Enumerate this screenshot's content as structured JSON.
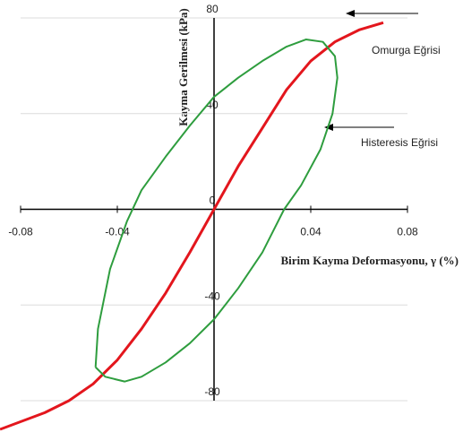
{
  "chart_data": {
    "type": "line",
    "x_label": "Birim Kayma Deformasyonu, γ (%)",
    "y_label": "Kayma Gerilmesi (kPa)",
    "xlim": [
      -0.08,
      0.08
    ],
    "ylim": [
      -80,
      80
    ],
    "xticks": [
      -0.08,
      -0.04,
      0.04,
      0.08
    ],
    "yticks": [
      -80,
      -40,
      0,
      40,
      80
    ],
    "grid": true,
    "series": [
      {
        "name": "Omurga Eğrisi",
        "color": "#e3161d",
        "x": [
          -0.0885,
          -0.07,
          -0.06,
          -0.05,
          -0.04,
          -0.03,
          -0.02,
          -0.01,
          0,
          0.01,
          0.02,
          0.03,
          0.04,
          0.05,
          0.06,
          0.07
        ],
        "y": [
          -92,
          -85,
          -80,
          -73,
          -63,
          -50,
          -35,
          -18,
          0,
          18,
          34,
          50,
          62,
          70,
          75,
          78
        ]
      },
      {
        "name": "Histeresis Eğrisi",
        "color": "#2e9d3e",
        "x": [
          -0.049,
          -0.048,
          -0.043,
          -0.036,
          -0.03,
          -0.02,
          -0.01,
          0,
          0.01,
          0.02,
          0.03,
          0.038,
          0.045,
          0.05,
          0.051,
          0.049,
          0.044,
          0.036,
          0.029,
          0.02,
          0.01,
          0,
          -0.01,
          -0.02,
          -0.03,
          -0.037,
          -0.045,
          -0.049
        ],
        "y": [
          -66,
          -50,
          -25,
          -5,
          8,
          22,
          35,
          47,
          55,
          62,
          68,
          71,
          70,
          64,
          55,
          40,
          25,
          10,
          0,
          -18,
          -33,
          -46,
          -56,
          -64,
          -70,
          -72,
          -70,
          -66
        ]
      }
    ]
  }
}
